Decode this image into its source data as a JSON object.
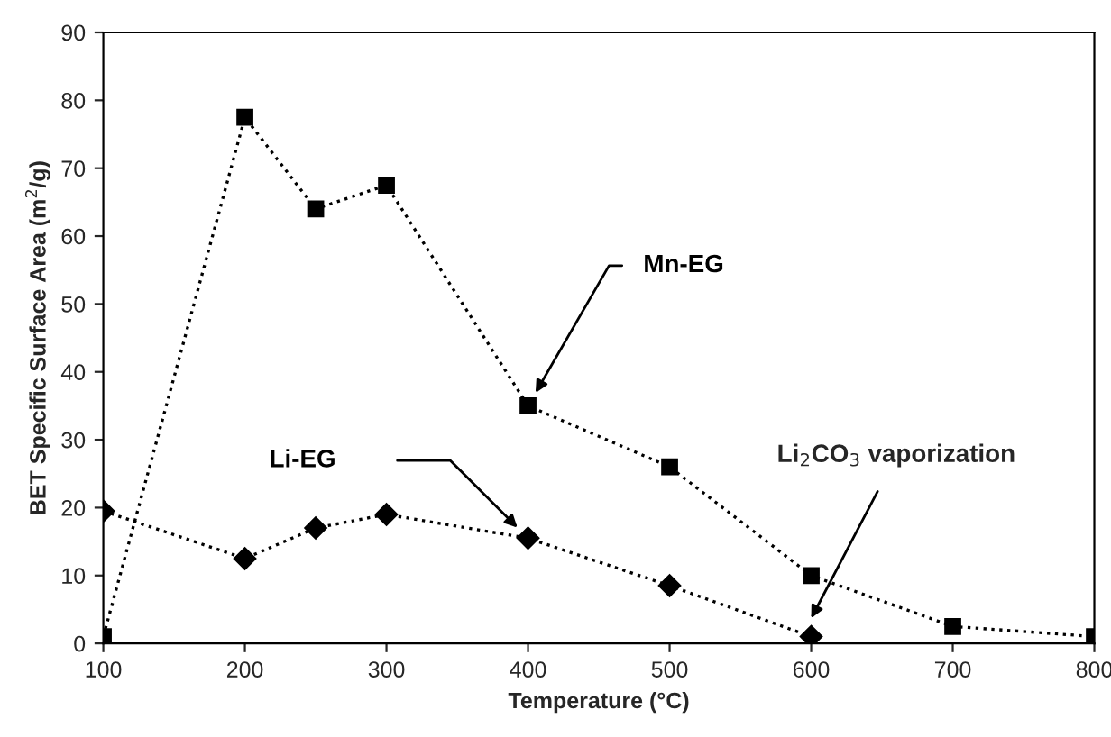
{
  "chart_data": {
    "type": "line",
    "xlabel": "Temperature (°C)",
    "ylabel": "BET Specific Surface Area (m$^{2}$/g)",
    "xlim": [
      100,
      800
    ],
    "xticks": [
      100,
      200,
      300,
      400,
      500,
      600,
      700,
      800
    ],
    "ylim": [
      0,
      90
    ],
    "yticks": [
      0,
      10,
      20,
      30,
      40,
      50,
      60,
      70,
      80,
      90
    ],
    "grid": false,
    "legend": false,
    "line_style": "dotted",
    "series": [
      {
        "name": "Mn-EG",
        "color": "#000000",
        "marker": "square",
        "x": [
          100,
          200,
          250,
          300,
          400,
          500,
          600,
          700,
          800
        ],
        "values": [
          1,
          77.5,
          64,
          67.5,
          35,
          26,
          10,
          2.5,
          1
        ]
      },
      {
        "name": "Li-EG",
        "color": "#000000",
        "marker": "diamond",
        "x": [
          100,
          200,
          250,
          300,
          400,
          500,
          600
        ],
        "values": [
          19.5,
          12.5,
          17,
          19,
          15.5,
          8.5,
          1
        ]
      }
    ],
    "annotations": [
      {
        "text": "Li$_{2}$CO$_{3}$ vaporization",
        "x": 600,
        "y": 3.7
      }
    ]
  }
}
